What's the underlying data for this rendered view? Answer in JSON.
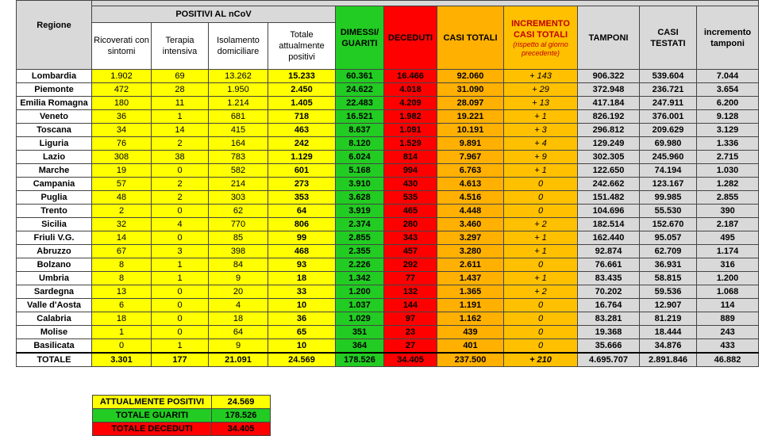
{
  "table": {
    "group_header": "POSITIVI AL nCoV",
    "headers": [
      "Regione",
      "Ricoverati con sintomi",
      "Terapia intensiva",
      "Isolamento domiciliare",
      "Totale attualmente positivi",
      "DIMESSI/ GUARITI",
      "DECEDUTI",
      "CASI TOTALI",
      "INCREMENTO CASI TOTALI",
      "TAMPONI",
      "CASI TESTATI",
      "incremento tamponi"
    ],
    "increment_note": "(rispetto al giorno precedente)",
    "rows": [
      [
        "Lombardia",
        "1.902",
        "69",
        "13.262",
        "15.233",
        "60.361",
        "16.466",
        "92.060",
        "+ 143",
        "906.322",
        "539.604",
        "7.044"
      ],
      [
        "Piemonte",
        "472",
        "28",
        "1.950",
        "2.450",
        "24.622",
        "4.018",
        "31.090",
        "+ 29",
        "372.948",
        "236.721",
        "3.654"
      ],
      [
        "Emilia Romagna",
        "180",
        "11",
        "1.214",
        "1.405",
        "22.483",
        "4.209",
        "28.097",
        "+ 13",
        "417.184",
        "247.911",
        "6.200"
      ],
      [
        "Veneto",
        "36",
        "1",
        "681",
        "718",
        "16.521",
        "1.982",
        "19.221",
        "+ 1",
        "826.192",
        "376.001",
        "9.128"
      ],
      [
        "Toscana",
        "34",
        "14",
        "415",
        "463",
        "8.637",
        "1.091",
        "10.191",
        "+ 3",
        "296.812",
        "209.629",
        "3.129"
      ],
      [
        "Liguria",
        "76",
        "2",
        "164",
        "242",
        "8.120",
        "1.529",
        "9.891",
        "+ 4",
        "129.249",
        "69.980",
        "1.336"
      ],
      [
        "Lazio",
        "308",
        "38",
        "783",
        "1.129",
        "6.024",
        "814",
        "7.967",
        "+ 9",
        "302.305",
        "245.960",
        "2.715"
      ],
      [
        "Marche",
        "19",
        "0",
        "582",
        "601",
        "5.168",
        "994",
        "6.763",
        "+ 1",
        "122.650",
        "74.194",
        "1.030"
      ],
      [
        "Campania",
        "57",
        "2",
        "214",
        "273",
        "3.910",
        "430",
        "4.613",
        "0",
        "242.662",
        "123.167",
        "1.282"
      ],
      [
        "Puglia",
        "48",
        "2",
        "303",
        "353",
        "3.628",
        "535",
        "4.516",
        "0",
        "151.482",
        "99.985",
        "2.855"
      ],
      [
        "Trento",
        "2",
        "0",
        "62",
        "64",
        "3.919",
        "465",
        "4.448",
        "0",
        "104.696",
        "55.530",
        "390"
      ],
      [
        "Sicilia",
        "32",
        "4",
        "770",
        "806",
        "2.374",
        "280",
        "3.460",
        "+ 2",
        "182.514",
        "152.670",
        "2.187"
      ],
      [
        "Friuli V.G.",
        "14",
        "0",
        "85",
        "99",
        "2.855",
        "343",
        "3.297",
        "+ 1",
        "162.440",
        "95.057",
        "495"
      ],
      [
        "Abruzzo",
        "67",
        "3",
        "398",
        "468",
        "2.355",
        "457",
        "3.280",
        "+ 1",
        "92.874",
        "62.709",
        "1.174"
      ],
      [
        "Bolzano",
        "8",
        "1",
        "84",
        "93",
        "2.226",
        "292",
        "2.611",
        "0",
        "76.661",
        "36.931",
        "316"
      ],
      [
        "Umbria",
        "8",
        "1",
        "9",
        "18",
        "1.342",
        "77",
        "1.437",
        "+ 1",
        "83.435",
        "58.815",
        "1.200"
      ],
      [
        "Sardegna",
        "13",
        "0",
        "20",
        "33",
        "1.200",
        "132",
        "1.365",
        "+ 2",
        "70.202",
        "59.536",
        "1.068"
      ],
      [
        "Valle d'Aosta",
        "6",
        "0",
        "4",
        "10",
        "1.037",
        "144",
        "1.191",
        "0",
        "16.764",
        "12.907",
        "114"
      ],
      [
        "Calabria",
        "18",
        "0",
        "18",
        "36",
        "1.029",
        "97",
        "1.162",
        "0",
        "83.281",
        "81.219",
        "889"
      ],
      [
        "Molise",
        "1",
        "0",
        "64",
        "65",
        "351",
        "23",
        "439",
        "0",
        "19.368",
        "18.444",
        "243"
      ],
      [
        "Basilicata",
        "0",
        "1",
        "9",
        "10",
        "364",
        "27",
        "401",
        "0",
        "35.666",
        "34.876",
        "433"
      ],
      [
        "TOTALE",
        "3.301",
        "177",
        "21.091",
        "24.569",
        "178.526",
        "34.405",
        "237.500",
        "+ 210",
        "4.695.707",
        "2.891.846",
        "46.882"
      ]
    ],
    "summary": [
      {
        "label": "ATTUALMENTE POSITIVI",
        "value": "24.569"
      },
      {
        "label": "TOTALE GUARITI",
        "value": "178.526"
      },
      {
        "label": "TOTALE DECEDUTI",
        "value": "34.405"
      }
    ]
  }
}
